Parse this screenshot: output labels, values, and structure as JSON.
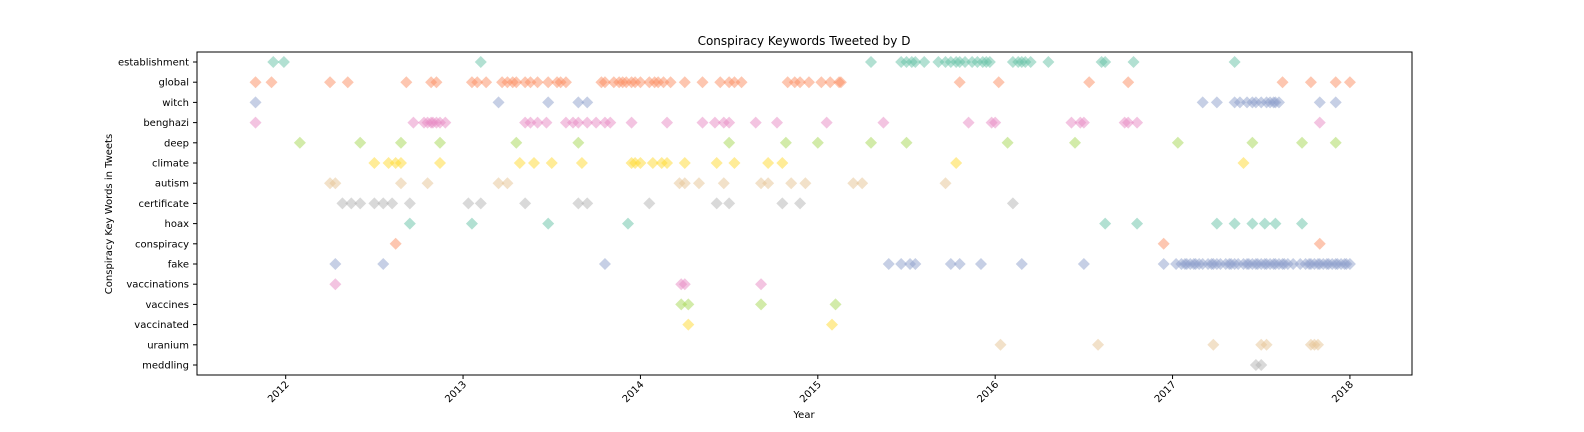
{
  "chart_data": {
    "type": "scatter",
    "title": "Conspiracy Keywords Tweeted by D",
    "xlabel": "Year",
    "ylabel": "Conspiracy Key Words in Tweets",
    "xlim": [
      2011.5,
      2018.35
    ],
    "x_ticks": [
      "2012",
      "2013",
      "2014",
      "2015",
      "2016",
      "2017",
      "2018"
    ],
    "grid": false,
    "marker": "diamond",
    "categories": [
      "establishment",
      "global",
      "witch",
      "benghazi",
      "deep",
      "climate",
      "autism",
      "certificate",
      "hoax",
      "conspiracy",
      "fake",
      "vaccinations",
      "vaccines",
      "vaccinated",
      "uranium",
      "meddling"
    ],
    "series": [
      {
        "keyword": "establishment",
        "color": "#66c2a5",
        "x": [
          2011.93,
          2011.99,
          2013.1,
          2015.3,
          2015.47,
          2015.5,
          2015.53,
          2015.55,
          2015.6,
          2015.68,
          2015.72,
          2015.75,
          2015.78,
          2015.8,
          2015.83,
          2015.87,
          2015.9,
          2015.93,
          2015.95,
          2015.97,
          2016.1,
          2016.13,
          2016.15,
          2016.17,
          2016.2,
          2016.3,
          2016.6,
          2016.62,
          2016.78,
          2017.35
        ]
      },
      {
        "keyword": "global",
        "color": "#fc8d62",
        "x": [
          2011.83,
          2011.92,
          2012.25,
          2012.35,
          2012.68,
          2012.82,
          2012.85,
          2013.05,
          2013.08,
          2013.13,
          2013.22,
          2013.25,
          2013.28,
          2013.3,
          2013.35,
          2013.38,
          2013.42,
          2013.48,
          2013.53,
          2013.55,
          2013.58,
          2013.78,
          2013.8,
          2013.85,
          2013.88,
          2013.9,
          2013.92,
          2013.95,
          2013.97,
          2014.0,
          2014.05,
          2014.08,
          2014.1,
          2014.13,
          2014.17,
          2014.25,
          2014.35,
          2014.45,
          2014.5,
          2014.53,
          2014.57,
          2014.83,
          2014.87,
          2014.9,
          2014.95,
          2015.02,
          2015.07,
          2015.12,
          2015.13,
          2015.8,
          2016.02,
          2016.53,
          2016.75,
          2017.62,
          2017.78,
          2017.92,
          2018.0
        ]
      },
      {
        "keyword": "witch",
        "color": "#8da0cb",
        "x": [
          2011.83,
          2013.2,
          2013.48,
          2013.65,
          2013.7,
          2017.17,
          2017.25,
          2017.35,
          2017.38,
          2017.42,
          2017.45,
          2017.47,
          2017.5,
          2017.53,
          2017.55,
          2017.57,
          2017.58,
          2017.6,
          2017.83,
          2017.92
        ]
      },
      {
        "keyword": "benghazi",
        "color": "#e78ac3",
        "x": [
          2011.83,
          2012.72,
          2012.78,
          2012.8,
          2012.82,
          2012.83,
          2012.85,
          2012.87,
          2012.9,
          2013.35,
          2013.38,
          2013.42,
          2013.47,
          2013.58,
          2013.62,
          2013.65,
          2013.7,
          2013.75,
          2013.8,
          2013.83,
          2013.95,
          2014.15,
          2014.35,
          2014.42,
          2014.47,
          2014.5,
          2014.65,
          2014.77,
          2015.05,
          2015.37,
          2015.85,
          2015.98,
          2016.0,
          2016.43,
          2016.48,
          2016.5,
          2016.73,
          2016.75,
          2016.8,
          2017.83
        ]
      },
      {
        "keyword": "deep",
        "color": "#a6d854",
        "x": [
          2012.08,
          2012.42,
          2012.65,
          2012.87,
          2013.3,
          2013.65,
          2014.5,
          2014.82,
          2015.0,
          2015.3,
          2015.5,
          2016.07,
          2016.45,
          2017.03,
          2017.45,
          2017.73,
          2017.92
        ]
      },
      {
        "keyword": "climate",
        "color": "#ffd92f",
        "x": [
          2012.5,
          2012.58,
          2012.62,
          2012.65,
          2012.87,
          2013.32,
          2013.4,
          2013.5,
          2013.67,
          2013.95,
          2013.97,
          2014.0,
          2014.07,
          2014.12,
          2014.15,
          2014.25,
          2014.43,
          2014.53,
          2014.72,
          2014.8,
          2015.78,
          2017.4
        ]
      },
      {
        "keyword": "autism",
        "color": "#e5c494",
        "x": [
          2012.25,
          2012.28,
          2012.65,
          2012.8,
          2013.2,
          2013.25,
          2014.22,
          2014.25,
          2014.33,
          2014.47,
          2014.68,
          2014.72,
          2014.85,
          2014.93,
          2015.2,
          2015.25,
          2015.72
        ]
      },
      {
        "keyword": "certificate",
        "color": "#b3b3b3",
        "x": [
          2012.32,
          2012.37,
          2012.42,
          2012.5,
          2012.55,
          2012.6,
          2012.7,
          2013.03,
          2013.1,
          2013.35,
          2013.65,
          2013.7,
          2014.05,
          2014.43,
          2014.5,
          2014.8,
          2014.9,
          2016.1
        ]
      },
      {
        "keyword": "hoax",
        "color": "#66c2a5",
        "x": [
          2012.7,
          2013.05,
          2013.48,
          2013.93,
          2016.62,
          2016.8,
          2017.25,
          2017.35,
          2017.45,
          2017.52,
          2017.58,
          2017.73
        ]
      },
      {
        "keyword": "conspiracy",
        "color": "#fc8d62",
        "x": [
          2012.62,
          2016.95,
          2017.83
        ]
      },
      {
        "keyword": "fake",
        "color": "#8da0cb",
        "x": [
          2012.28,
          2012.55,
          2013.8,
          2015.4,
          2015.47,
          2015.52,
          2015.55,
          2015.75,
          2015.8,
          2015.92,
          2016.15,
          2016.5,
          2016.95,
          2017.02,
          2017.05,
          2017.07,
          2017.08,
          2017.1,
          2017.12,
          2017.13,
          2017.15,
          2017.17,
          2017.2,
          2017.22,
          2017.23,
          2017.25,
          2017.27,
          2017.3,
          2017.32,
          2017.33,
          2017.35,
          2017.37,
          2017.4,
          2017.42,
          2017.43,
          2017.45,
          2017.47,
          2017.48,
          2017.5,
          2017.52,
          2017.53,
          2017.55,
          2017.57,
          2017.58,
          2017.6,
          2017.62,
          2017.63,
          2017.65,
          2017.68,
          2017.72,
          2017.75,
          2017.77,
          2017.78,
          2017.8,
          2017.82,
          2017.83,
          2017.85,
          2017.87,
          2017.88,
          2017.9,
          2017.92,
          2017.93,
          2017.95,
          2017.97,
          2017.98,
          2018.0
        ]
      },
      {
        "keyword": "vaccinations",
        "color": "#e78ac3",
        "x": [
          2012.28,
          2014.23,
          2014.25,
          2014.68
        ]
      },
      {
        "keyword": "vaccines",
        "color": "#a6d854",
        "x": [
          2014.23,
          2014.27,
          2014.68,
          2015.1
        ]
      },
      {
        "keyword": "vaccinated",
        "color": "#ffd92f",
        "x": [
          2014.27,
          2015.08
        ]
      },
      {
        "keyword": "uranium",
        "color": "#e5c494",
        "x": [
          2016.03,
          2016.58,
          2017.23,
          2017.5,
          2017.53,
          2017.78,
          2017.8,
          2017.82
        ]
      },
      {
        "keyword": "meddling",
        "color": "#b3b3b3",
        "x": [
          2017.47,
          2017.5
        ]
      }
    ]
  }
}
